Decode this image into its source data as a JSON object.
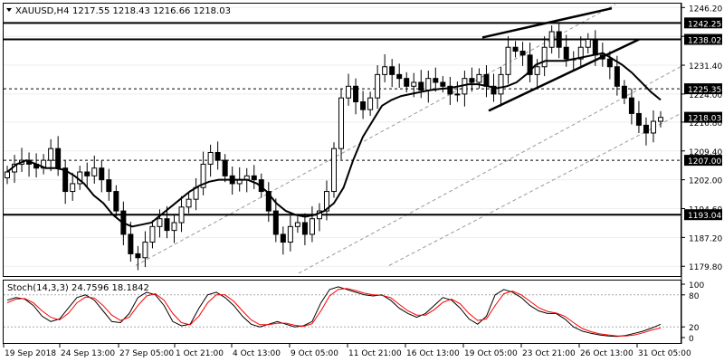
{
  "header": {
    "symbol": "XAUUSD,H4",
    "ohlc": "1217.55 1218.43 1216.66 1218.03"
  },
  "chart_data": [
    {
      "type": "candlestick",
      "title": "XAUUSD,H4",
      "ylim": [
        1177.3,
        1247.2
      ],
      "y_ticks": [
        1179.8,
        1187.2,
        1194.6,
        1202.0,
        1209.4,
        1216.8,
        1224.0,
        1231.4,
        1238.8,
        1246.2
      ],
      "x_ticks": [
        "19 Sep 2018",
        "24 Sep 13:00",
        "27 Sep 05:00",
        "1 Oct 21:00",
        "4 Oct 13:00",
        "9 Oct 05:00",
        "11 Oct 21:00",
        "16 Oct 13:00",
        "19 Oct 05:00",
        "23 Oct 21:00",
        "26 Oct 13:00",
        "31 Oct 05:00"
      ],
      "last_price": "1218.03",
      "moving_average": [
        1204,
        1206,
        1207,
        1206,
        1205,
        1205,
        1204.5,
        1203,
        1201,
        1198,
        1196,
        1193,
        1191,
        1190,
        1190.5,
        1191,
        1193,
        1195,
        1197,
        1199,
        1200.5,
        1201.5,
        1202,
        1202,
        1202,
        1202,
        1201,
        1199,
        1196,
        1194,
        1193,
        1192.5,
        1193,
        1194,
        1196,
        1200,
        1207,
        1213,
        1217,
        1221,
        1222.5,
        1223.5,
        1224,
        1224.5,
        1225,
        1225.3,
        1225.5,
        1226,
        1226.5,
        1226.5,
        1226,
        1225.5,
        1226,
        1227,
        1229,
        1231.5,
        1232.5,
        1232.5,
        1232.5,
        1233,
        1233.5,
        1234,
        1234.5,
        1233,
        1231.5,
        1229.5,
        1227,
        1224.5,
        1222.5
      ],
      "candles_close": [
        1204,
        1206,
        1207,
        1206,
        1205,
        1207,
        1210,
        1205,
        1199,
        1201,
        1204,
        1203,
        1205,
        1202,
        1199,
        1194,
        1188,
        1183,
        1182,
        1186,
        1190,
        1192,
        1189,
        1191,
        1195,
        1197,
        1200,
        1206,
        1209,
        1207,
        1203,
        1201,
        1202,
        1203,
        1202,
        1199,
        1194,
        1188,
        1186,
        1190,
        1191,
        1188,
        1192,
        1194,
        1199,
        1210,
        1223,
        1226,
        1222,
        1220,
        1223,
        1229,
        1231,
        1229,
        1228,
        1226,
        1227,
        1225,
        1228,
        1227,
        1226,
        1224,
        1224,
        1228,
        1227,
        1229,
        1226,
        1224,
        1229,
        1236,
        1235,
        1234,
        1229,
        1231,
        1236,
        1240,
        1236,
        1233,
        1233,
        1236,
        1238,
        1234,
        1233,
        1231,
        1226,
        1223,
        1219,
        1216,
        1214,
        1217,
        1218
      ]
    },
    {
      "type": "line",
      "title": "Stoch(14,3,3) 24.7596 18.1842",
      "ylim": [
        0,
        100
      ],
      "y_ticks": [
        0,
        20,
        80,
        100
      ],
      "series": [
        {
          "name": "24.7596",
          "values": [
            70,
            75,
            72,
            60,
            40,
            30,
            35,
            55,
            75,
            80,
            70,
            50,
            30,
            28,
            45,
            75,
            85,
            80,
            60,
            30,
            22,
            25,
            55,
            80,
            85,
            75,
            60,
            40,
            25,
            20,
            25,
            30,
            25,
            20,
            22,
            30,
            65,
            90,
            95,
            90,
            85,
            80,
            78,
            80,
            70,
            55,
            45,
            38,
            45,
            60,
            75,
            70,
            55,
            35,
            25,
            40,
            80,
            90,
            85,
            75,
            60,
            50,
            45,
            45,
            35,
            20,
            12,
            8,
            5,
            3,
            2,
            4,
            8,
            12,
            18,
            25
          ]
        },
        {
          "name": "18.1842",
          "values": [
            65,
            72,
            73,
            65,
            50,
            38,
            33,
            45,
            65,
            76,
            74,
            60,
            42,
            32,
            38,
            60,
            78,
            82,
            70,
            45,
            28,
            24,
            40,
            65,
            80,
            80,
            68,
            50,
            33,
            24,
            24,
            27,
            27,
            23,
            21,
            26,
            50,
            78,
            90,
            92,
            88,
            83,
            80,
            79,
            75,
            62,
            50,
            42,
            42,
            52,
            66,
            72,
            63,
            45,
            32,
            35,
            60,
            82,
            87,
            80,
            68,
            56,
            49,
            46,
            40,
            28,
            17,
            11,
            7,
            5,
            3,
            3,
            5,
            9,
            14,
            18
          ]
        }
      ]
    }
  ],
  "levels": [
    {
      "price": 1242.25,
      "label": "1242.25",
      "style": "solid"
    },
    {
      "price": 1238.02,
      "label": "1238.02",
      "style": "solid"
    },
    {
      "price": 1225.35,
      "label": "1225.35",
      "style": "dashed"
    },
    {
      "price": 1207.0,
      "label": "1207.00",
      "style": "dashed"
    },
    {
      "price": 1193.04,
      "label": "1193.04",
      "style": "solid"
    }
  ],
  "stoch_levels": [
    {
      "value": 80,
      "label": "80"
    },
    {
      "value": 20,
      "label": "20"
    }
  ],
  "colors": {
    "candle": "#000000",
    "ma": "#000000",
    "stoch_main": "#000000",
    "stoch_signal": "#ff0000",
    "channel": "#999999",
    "label_bg": "#ffffff"
  }
}
